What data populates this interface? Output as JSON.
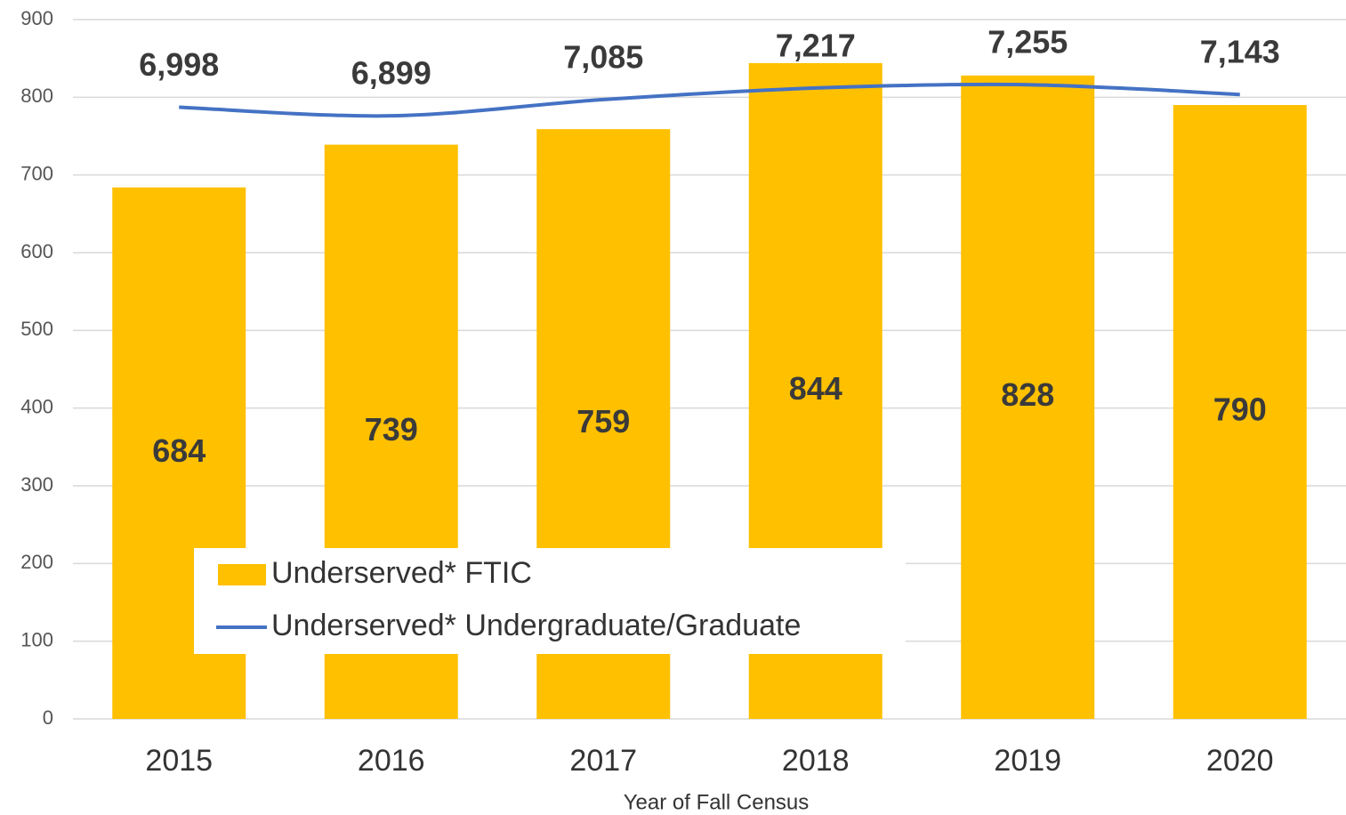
{
  "chart_data": {
    "type": "bar-line",
    "x_label": "Year of Fall Census",
    "categories": [
      "2015",
      "2016",
      "2017",
      "2018",
      "2019",
      "2020"
    ],
    "series": [
      {
        "name": "Underserved* FTIC",
        "type": "bar",
        "color": "#ffc000",
        "values": [
          684,
          739,
          759,
          844,
          828,
          790
        ]
      },
      {
        "name": "Underserved* Undergraduate/Graduate",
        "type": "line",
        "axis": "y2",
        "color": "#4472c4",
        "values": [
          6998,
          6899,
          7085,
          7217,
          7255,
          7143
        ],
        "value_labels": [
          "6,998",
          "6,899",
          "7,085",
          "7,217",
          "7,255",
          "7,143"
        ]
      }
    ],
    "ylim": [
      0,
      900
    ],
    "yticks": [
      0,
      100,
      200,
      300,
      400,
      500,
      600,
      700,
      800,
      900
    ],
    "y2lim": [
      0,
      8000
    ],
    "grid": true
  }
}
